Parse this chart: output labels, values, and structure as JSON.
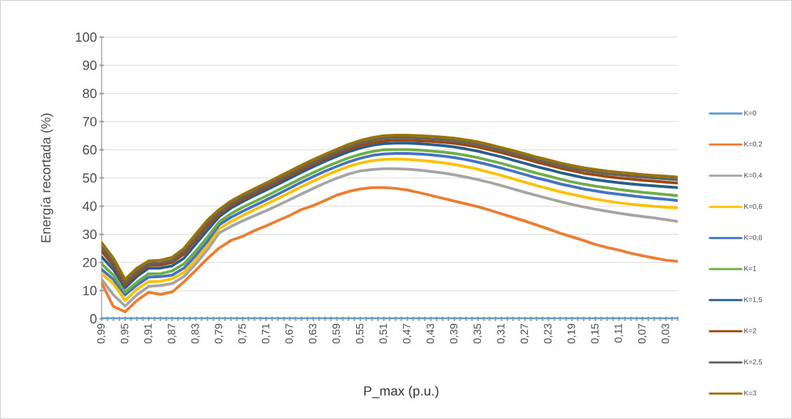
{
  "chart_data": {
    "type": "line",
    "xlabel": "P_max (p.u.)",
    "ylabel": "Energía recortada (%)",
    "x": [
      0.99,
      0.97,
      0.95,
      0.93,
      0.91,
      0.89,
      0.87,
      0.85,
      0.83,
      0.81,
      0.79,
      0.77,
      0.75,
      0.73,
      0.71,
      0.69,
      0.67,
      0.65,
      0.63,
      0.61,
      0.59,
      0.57,
      0.55,
      0.53,
      0.51,
      0.49,
      0.47,
      0.45,
      0.43,
      0.41,
      0.39,
      0.37,
      0.35,
      0.33,
      0.31,
      0.29,
      0.27,
      0.25,
      0.23,
      0.21,
      0.19,
      0.17,
      0.15,
      0.13,
      0.11,
      0.09,
      0.07,
      0.05,
      0.03,
      0.01
    ],
    "xlim": [
      0.99,
      0.01
    ],
    "xticks": [
      {
        "value": 0.99,
        "label": "0,99"
      },
      {
        "value": 0.98,
        "label": null
      },
      {
        "value": 0.97,
        "label": null
      },
      {
        "value": 0.96,
        "label": null
      },
      {
        "value": 0.95,
        "label": "0,95"
      },
      {
        "value": 0.94,
        "label": null
      },
      {
        "value": 0.93,
        "label": null
      },
      {
        "value": 0.92,
        "label": null
      },
      {
        "value": 0.91,
        "label": "0,91"
      },
      {
        "value": 0.9,
        "label": null
      },
      {
        "value": 0.89,
        "label": null
      },
      {
        "value": 0.88,
        "label": null
      },
      {
        "value": 0.87,
        "label": "0,87"
      },
      {
        "value": 0.86,
        "label": null
      },
      {
        "value": 0.85,
        "label": null
      },
      {
        "value": 0.84,
        "label": null
      },
      {
        "value": 0.83,
        "label": "0,83"
      },
      {
        "value": 0.82,
        "label": null
      },
      {
        "value": 0.81,
        "label": null
      },
      {
        "value": 0.8,
        "label": null
      },
      {
        "value": 0.79,
        "label": "0,79"
      },
      {
        "value": 0.78,
        "label": null
      },
      {
        "value": 0.77,
        "label": null
      },
      {
        "value": 0.76,
        "label": null
      },
      {
        "value": 0.75,
        "label": "0,75"
      },
      {
        "value": 0.74,
        "label": null
      },
      {
        "value": 0.73,
        "label": null
      },
      {
        "value": 0.72,
        "label": null
      },
      {
        "value": 0.71,
        "label": "0,71"
      },
      {
        "value": 0.7,
        "label": null
      },
      {
        "value": 0.69,
        "label": null
      },
      {
        "value": 0.68,
        "label": null
      },
      {
        "value": 0.67,
        "label": "0,67"
      },
      {
        "value": 0.66,
        "label": null
      },
      {
        "value": 0.65,
        "label": null
      },
      {
        "value": 0.64,
        "label": null
      },
      {
        "value": 0.63,
        "label": "0,63"
      },
      {
        "value": 0.62,
        "label": null
      },
      {
        "value": 0.61,
        "label": null
      },
      {
        "value": 0.6,
        "label": null
      },
      {
        "value": 0.59,
        "label": "0,59"
      },
      {
        "value": 0.58,
        "label": null
      },
      {
        "value": 0.57,
        "label": null
      },
      {
        "value": 0.56,
        "label": null
      },
      {
        "value": 0.55,
        "label": "0,55"
      },
      {
        "value": 0.54,
        "label": null
      },
      {
        "value": 0.53,
        "label": null
      },
      {
        "value": 0.52,
        "label": null
      },
      {
        "value": 0.51,
        "label": "0,51"
      },
      {
        "value": 0.5,
        "label": null
      },
      {
        "value": 0.49,
        "label": null
      },
      {
        "value": 0.48,
        "label": null
      },
      {
        "value": 0.47,
        "label": "0,47"
      },
      {
        "value": 0.46,
        "label": null
      },
      {
        "value": 0.45,
        "label": null
      },
      {
        "value": 0.44,
        "label": null
      },
      {
        "value": 0.43,
        "label": "0,43"
      },
      {
        "value": 0.42,
        "label": null
      },
      {
        "value": 0.41,
        "label": null
      },
      {
        "value": 0.4,
        "label": null
      },
      {
        "value": 0.39,
        "label": "0,39"
      },
      {
        "value": 0.38,
        "label": null
      },
      {
        "value": 0.37,
        "label": null
      },
      {
        "value": 0.36,
        "label": null
      },
      {
        "value": 0.35,
        "label": "0,35"
      },
      {
        "value": 0.34,
        "label": null
      },
      {
        "value": 0.33,
        "label": null
      },
      {
        "value": 0.32,
        "label": null
      },
      {
        "value": 0.31,
        "label": "0,31"
      },
      {
        "value": 0.3,
        "label": null
      },
      {
        "value": 0.29,
        "label": null
      },
      {
        "value": 0.28,
        "label": null
      },
      {
        "value": 0.27,
        "label": "0,27"
      },
      {
        "value": 0.26,
        "label": null
      },
      {
        "value": 0.25,
        "label": null
      },
      {
        "value": 0.24,
        "label": null
      },
      {
        "value": 0.23,
        "label": "0,23"
      },
      {
        "value": 0.22,
        "label": null
      },
      {
        "value": 0.21,
        "label": null
      },
      {
        "value": 0.2,
        "label": null
      },
      {
        "value": 0.19,
        "label": "0,19"
      },
      {
        "value": 0.18,
        "label": null
      },
      {
        "value": 0.17,
        "label": null
      },
      {
        "value": 0.16,
        "label": null
      },
      {
        "value": 0.15,
        "label": "0,15"
      },
      {
        "value": 0.14,
        "label": null
      },
      {
        "value": 0.13,
        "label": null
      },
      {
        "value": 0.12,
        "label": null
      },
      {
        "value": 0.11,
        "label": "0,11"
      },
      {
        "value": 0.1,
        "label": null
      },
      {
        "value": 0.09,
        "label": null
      },
      {
        "value": 0.08,
        "label": null
      },
      {
        "value": 0.07,
        "label": "0,07"
      },
      {
        "value": 0.06,
        "label": null
      },
      {
        "value": 0.05,
        "label": null
      },
      {
        "value": 0.04,
        "label": null
      },
      {
        "value": 0.03,
        "label": "0,03"
      },
      {
        "value": 0.02,
        "label": null
      },
      {
        "value": 0.01,
        "label": null
      }
    ],
    "ylim": [
      0,
      100
    ],
    "yticks": [
      0,
      10,
      20,
      30,
      40,
      50,
      60,
      70,
      80,
      90,
      100
    ],
    "grid": "y",
    "legend": "right",
    "marker": "none",
    "line_style": "solid",
    "series": [
      {
        "name": "K=0",
        "color": "#5b9bd5",
        "values": [
          0,
          0,
          0,
          0,
          0,
          0,
          0,
          0,
          0,
          0,
          0,
          0,
          0,
          0,
          0,
          0,
          0,
          0,
          0,
          0,
          0,
          0,
          0,
          0,
          0,
          0,
          0,
          0,
          0,
          0,
          0,
          0,
          0,
          0,
          0,
          0,
          0,
          0,
          0,
          0,
          0,
          0,
          0,
          0,
          0,
          0,
          0,
          0,
          0,
          0
        ]
      },
      {
        "name": "K=0,2",
        "color": "#ed7d31",
        "values": [
          12.7,
          4.4,
          2.5,
          6.5,
          9.4,
          8.7,
          9.5,
          13.1,
          17.2,
          21.4,
          25.1,
          27.8,
          29.3,
          31.3,
          33,
          34.9,
          36.7,
          38.8,
          40.2,
          42,
          43.9,
          45.2,
          46.1,
          46.6,
          46.6,
          46.3,
          45.7,
          44.8,
          43.8,
          42.8,
          41.8,
          40.8,
          39.8,
          38.6,
          37.3,
          36,
          34.7,
          33.3,
          31.9,
          30.4,
          29.1,
          27.8,
          26.4,
          25.3,
          24.4,
          23.3,
          22.4,
          21.6,
          20.8,
          20.4
        ]
      },
      {
        "name": "K=0,4",
        "color": "#a5a5a5",
        "values": [
          14,
          8.5,
          4.5,
          8.5,
          11.5,
          11.8,
          12.5,
          15,
          19.5,
          24.5,
          30.5,
          32.8,
          34.8,
          36.6,
          38.4,
          40.3,
          42.3,
          44.3,
          46.3,
          48.2,
          49.9,
          51.4,
          52.5,
          53,
          53.3,
          53.3,
          53.1,
          52.8,
          52.3,
          51.8,
          51.1,
          50.3,
          49.4,
          48.4,
          47.3,
          46.1,
          44.9,
          43.8,
          42.7,
          41.6,
          40.6,
          39.7,
          38.9,
          38.2,
          37.5,
          36.9,
          36.3,
          35.8,
          35.2,
          34.6
        ]
      },
      {
        "name": "K=0,6",
        "color": "#ffc000",
        "values": [
          16,
          12.5,
          6.5,
          10.5,
          13.2,
          13.3,
          14.2,
          16.5,
          21,
          26,
          32,
          34.5,
          36.7,
          38.7,
          40.7,
          42.7,
          44.8,
          46.9,
          48.9,
          50.8,
          52.5,
          54.1,
          55.3,
          56.1,
          56.6,
          56.7,
          56.6,
          56.3,
          55.9,
          55.4,
          54.8,
          54,
          53.1,
          52,
          50.9,
          49.7,
          48.5,
          47.3,
          46.2,
          45.1,
          44.2,
          43.3,
          42.5,
          41.8,
          41.2,
          40.7,
          40.3,
          39.9,
          39.6,
          39.4
        ]
      },
      {
        "name": "K=0,8",
        "color": "#4472c4",
        "values": [
          17.5,
          14,
          8.5,
          12,
          14.8,
          15,
          15.5,
          18,
          22.5,
          27.5,
          33.4,
          36,
          38.2,
          40.2,
          42.2,
          44.3,
          46.4,
          48.5,
          50.5,
          52.4,
          54.1,
          55.7,
          57,
          58,
          58.5,
          58.7,
          58.7,
          58.5,
          58.2,
          57.8,
          57.2,
          56.5,
          55.6,
          54.6,
          53.5,
          52.4,
          51.2,
          50,
          49,
          47.9,
          47,
          46.1,
          45.4,
          44.7,
          44.2,
          43.7,
          43.2,
          42.8,
          42.4,
          42
        ]
      },
      {
        "name": "K=1",
        "color": "#70ad47",
        "values": [
          19.5,
          15.5,
          9.5,
          13,
          16,
          16,
          17,
          19.5,
          24,
          29,
          34.4,
          37.3,
          39.6,
          41.6,
          43.6,
          45.7,
          47.8,
          49.9,
          51.9,
          53.8,
          55.5,
          57.1,
          58.4,
          59.4,
          60,
          60.1,
          60.1,
          59.9,
          59.6,
          59.2,
          58.7,
          58,
          57.2,
          56.2,
          55.2,
          54,
          52.9,
          51.7,
          50.7,
          49.6,
          48.6,
          47.8,
          47.1,
          46.5,
          45.9,
          45.4,
          44.9,
          44.5,
          44.1,
          43.7
        ]
      },
      {
        "name": "K=1,5",
        "color": "#255e91",
        "values": [
          22,
          17.5,
          11,
          15,
          18,
          18,
          18.8,
          21.5,
          26.5,
          31.5,
          36.3,
          39.3,
          41.6,
          43.7,
          45.7,
          47.8,
          49.9,
          52,
          54,
          55.9,
          57.7,
          59.3,
          60.6,
          61.6,
          62.2,
          62.4,
          62.4,
          62.2,
          61.9,
          61.5,
          61,
          60.3,
          59.5,
          58.5,
          57.5,
          56.3,
          55.2,
          54,
          53,
          51.9,
          51,
          50.1,
          49.4,
          48.8,
          48.3,
          47.9,
          47.5,
          47.2,
          46.9,
          46.6
        ]
      },
      {
        "name": "K=2",
        "color": "#9e480e",
        "values": [
          24,
          19,
          12,
          16,
          19,
          19,
          20,
          23,
          28,
          33,
          37.1,
          40.2,
          42.5,
          44.6,
          46.6,
          48.7,
          50.8,
          52.9,
          54.9,
          56.8,
          58.6,
          60.2,
          61.5,
          62.5,
          63.1,
          63.4,
          63.4,
          63.2,
          63,
          62.7,
          62.3,
          61.7,
          61,
          60,
          59,
          57.9,
          56.8,
          55.6,
          54.6,
          53.5,
          52.6,
          51.7,
          51.1,
          50.5,
          50,
          49.6,
          49.2,
          48.9,
          48.5,
          48.2
        ]
      },
      {
        "name": "K=2,5",
        "color": "#636363",
        "values": [
          25.5,
          20,
          13,
          17,
          19.5,
          19.8,
          20.8,
          24,
          29,
          34,
          37.8,
          40.9,
          43.2,
          45.3,
          47.3,
          49.4,
          51.5,
          53.6,
          55.6,
          57.5,
          59.3,
          61,
          62.4,
          63.4,
          64.1,
          64.3,
          64.3,
          64.1,
          63.9,
          63.6,
          63.2,
          62.6,
          61.9,
          60.9,
          59.9,
          58.8,
          57.7,
          56.5,
          55.5,
          54.4,
          53.5,
          52.7,
          52.1,
          51.5,
          51.1,
          50.7,
          50.3,
          50,
          49.7,
          49.4
        ]
      },
      {
        "name": "K=3",
        "color": "#997300",
        "values": [
          27,
          21.5,
          14,
          18,
          20.5,
          20.8,
          21.8,
          25,
          30,
          35,
          38.8,
          41.8,
          44.1,
          46.2,
          48.2,
          50.3,
          52.4,
          54.5,
          56.5,
          58.4,
          60.2,
          61.9,
          63.3,
          64.3,
          65,
          65.2,
          65.2,
          65,
          64.8,
          64.5,
          64.1,
          63.5,
          62.8,
          61.8,
          60.8,
          59.7,
          58.6,
          57.4,
          56.4,
          55.3,
          54.4,
          53.6,
          53,
          52.4,
          52,
          51.6,
          51.2,
          50.9,
          50.6,
          50.3
        ]
      }
    ]
  }
}
